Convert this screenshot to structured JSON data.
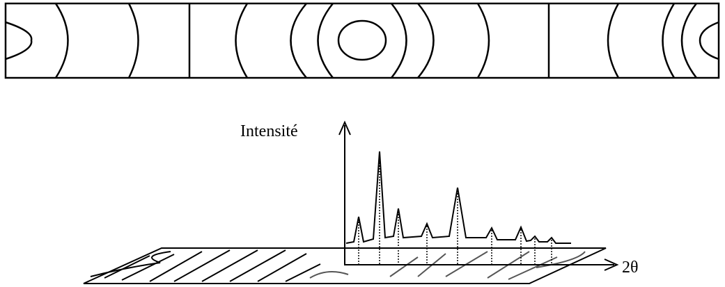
{
  "axis_labels": {
    "y": "Intensité",
    "x": "2θ"
  }
}
